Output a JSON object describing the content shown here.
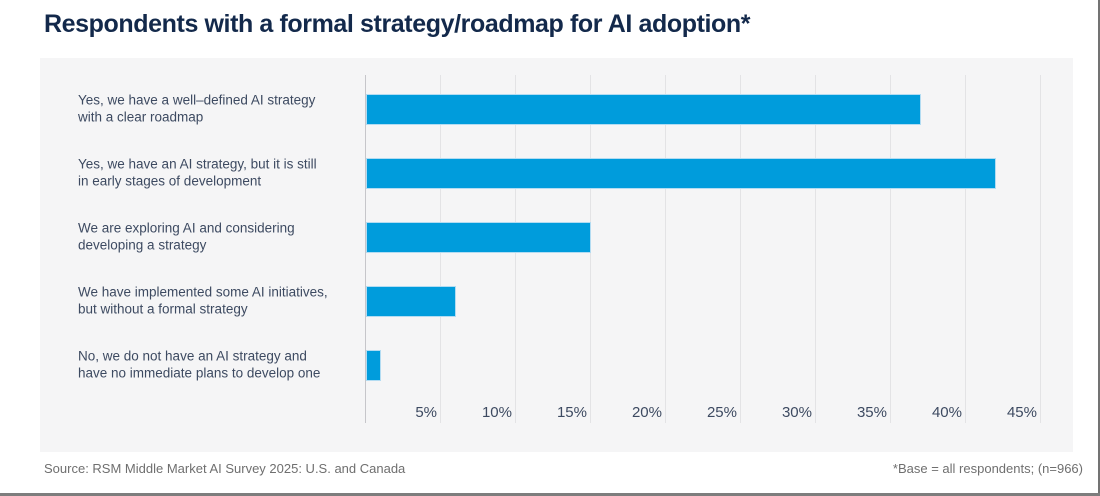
{
  "header": {
    "title": "Respondents with a formal strategy/roadmap for AI adoption*"
  },
  "chart_data": {
    "type": "bar",
    "orientation": "horizontal",
    "title": "Respondents with a formal strategy/roadmap for AI adoption*",
    "categories": [
      "Yes, we have a well–defined AI strategy\nwith a clear roadmap",
      "Yes, we have an AI strategy, but it is still\nin early stages of development",
      "We are exploring AI and considering\ndeveloping a strategy",
      "We have implemented some AI initiatives,\nbut without a formal strategy",
      "No, we do not have an AI strategy and\nhave no immediate plans to develop one"
    ],
    "values": [
      37,
      42,
      15,
      6,
      1
    ],
    "value_unit": "%",
    "xlabel": "",
    "ylabel": "",
    "xlim": [
      0,
      47
    ],
    "gridline_percents": [
      0,
      5,
      10,
      15,
      20,
      25,
      30,
      35,
      40,
      45
    ],
    "tick_labels": [
      "5%",
      "10%",
      "15%",
      "20%",
      "25%",
      "30%",
      "35%",
      "40%",
      "45%"
    ],
    "grid_on": true,
    "legend": "none",
    "bar_color": "#009cdc",
    "bar_edge_color": "#b3dcf2",
    "plot_bg_color": "#f5f5f6",
    "grid_color": "#e3e3e5",
    "axis_color": "#c6c6ca",
    "title_color": "#13294b",
    "label_color": "#3d4a61"
  },
  "footer": {
    "source": "Source: RSM Middle Market AI Survey 2025: U.S. and Canada",
    "note": "*Base = all respondents; (n=966)"
  }
}
